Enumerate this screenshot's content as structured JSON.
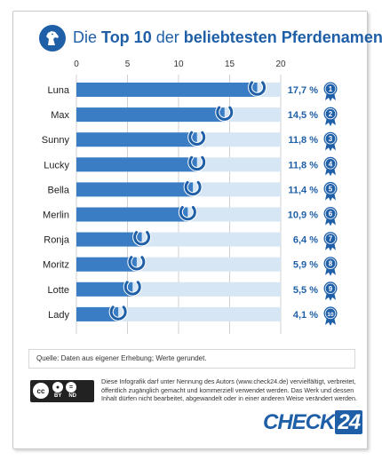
{
  "header": {
    "title_prefix": "Die",
    "title_bold": "Top 10",
    "title_middle": "der",
    "title_bold2": "beliebtesten Pferdenamen",
    "icon": "horse-head-icon"
  },
  "chart_data": {
    "type": "bar",
    "orientation": "horizontal",
    "categories": [
      "Luna",
      "Max",
      "Sunny",
      "Lucky",
      "Bella",
      "Merlin",
      "Ronja",
      "Moritz",
      "Lotte",
      "Lady"
    ],
    "values": [
      17.7,
      14.5,
      11.8,
      11.8,
      11.4,
      10.9,
      6.4,
      5.9,
      5.5,
      4.1
    ],
    "value_labels": [
      "17,7 %",
      "14,5 %",
      "11,8 %",
      "11,8 %",
      "11,4 %",
      "10,9 %",
      "6,4 %",
      "5,9 %",
      "5,5 %",
      "4,1 %"
    ],
    "ranks": [
      "1",
      "2",
      "3",
      "4",
      "5",
      "6",
      "7",
      "8",
      "9",
      "10"
    ],
    "xlim": [
      0,
      20
    ],
    "xticks": [
      "0",
      "5",
      "10",
      "15",
      "20"
    ],
    "grid": true,
    "bar_color": "#3a7dc5",
    "track_color": "#d6e6f5"
  },
  "source": "Quelle: Daten aus eigener Erhebung; Werte gerundet.",
  "license": {
    "cc_label": "cc",
    "by_label": "BY",
    "nd_label": "ND",
    "text": "Diese Infografik darf unter Nennung des Autors (www.check24.de) vervielfältigt, verbreitet, öffentlich zugänglich gemacht und kommerziell verwendet werden. Das Werk und dessen Inhalt dürfen nicht bearbeitet, abgewandelt oder in einer anderen Weise verändert werden."
  },
  "logo": {
    "text": "CHECK",
    "number": "24"
  },
  "colors": {
    "brand": "#1f5fa8"
  }
}
